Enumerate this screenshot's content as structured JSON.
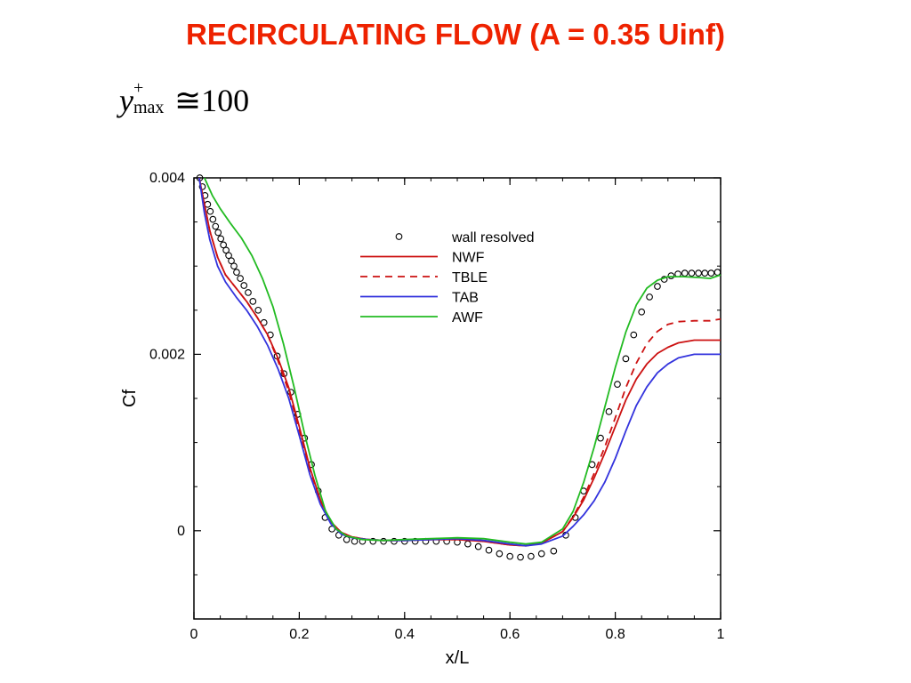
{
  "title": "RECIRCULATING FLOW (A = 0.35 Uinf)",
  "formula": {
    "variable": "y",
    "superscript": "+",
    "subscript": "max",
    "relation": "≅100"
  },
  "chart_data": {
    "type": "line",
    "xlabel": "x/L",
    "ylabel": "Cf",
    "xlim": [
      0,
      1
    ],
    "ylim": [
      -0.001,
      0.004
    ],
    "x_ticks": [
      0,
      0.2,
      0.4,
      0.6,
      0.8,
      1
    ],
    "x_tick_labels": [
      "0",
      "0.2",
      "0.4",
      "0.6",
      "0.8",
      "1"
    ],
    "y_ticks": [
      0,
      0.002,
      0.004
    ],
    "y_tick_labels": [
      "0",
      "0.002",
      "0.004"
    ],
    "legend_position": "top-center",
    "series": [
      {
        "name": "wall resolved",
        "style": "markers",
        "color": "#000000",
        "x": [
          0.011,
          0.016,
          0.021,
          0.026,
          0.031,
          0.036,
          0.041,
          0.046,
          0.051,
          0.056,
          0.061,
          0.066,
          0.071,
          0.076,
          0.081,
          0.088,
          0.095,
          0.103,
          0.112,
          0.122,
          0.133,
          0.145,
          0.158,
          0.171,
          0.184,
          0.197,
          0.21,
          0.223,
          0.236,
          0.249,
          0.262,
          0.275,
          0.29,
          0.305,
          0.32,
          0.34,
          0.36,
          0.38,
          0.4,
          0.42,
          0.44,
          0.46,
          0.48,
          0.5,
          0.52,
          0.54,
          0.56,
          0.58,
          0.6,
          0.62,
          0.64,
          0.66,
          0.683,
          0.706,
          0.724,
          0.74,
          0.756,
          0.772,
          0.788,
          0.804,
          0.82,
          0.835,
          0.85,
          0.865,
          0.88,
          0.893,
          0.906,
          0.919,
          0.932,
          0.945,
          0.958,
          0.97,
          0.982,
          0.994
        ],
        "y": [
          0.004,
          0.0039,
          0.0038,
          0.0037,
          0.00362,
          0.00353,
          0.00345,
          0.00338,
          0.00331,
          0.00324,
          0.00318,
          0.00312,
          0.00306,
          0.003,
          0.00293,
          0.00286,
          0.00278,
          0.0027,
          0.0026,
          0.0025,
          0.00236,
          0.00222,
          0.00198,
          0.00178,
          0.00157,
          0.00132,
          0.00105,
          0.00075,
          0.00045,
          0.00015,
          2e-05,
          -5e-05,
          -0.0001,
          -0.00012,
          -0.00012,
          -0.00012,
          -0.00012,
          -0.00012,
          -0.00012,
          -0.00012,
          -0.00012,
          -0.00012,
          -0.00012,
          -0.00013,
          -0.00015,
          -0.00018,
          -0.00022,
          -0.00026,
          -0.00029,
          -0.0003,
          -0.00029,
          -0.00026,
          -0.00023,
          -5e-05,
          0.00015,
          0.00045,
          0.00075,
          0.00105,
          0.00135,
          0.00166,
          0.00195,
          0.00222,
          0.00248,
          0.00265,
          0.00277,
          0.00285,
          0.00289,
          0.00291,
          0.00292,
          0.00292,
          0.00292,
          0.00292,
          0.00292,
          0.00293
        ]
      },
      {
        "name": "NWF",
        "style": "solid",
        "color": "#cc1111",
        "x": [
          0.01,
          0.02,
          0.03,
          0.045,
          0.06,
          0.08,
          0.1,
          0.12,
          0.14,
          0.16,
          0.18,
          0.2,
          0.22,
          0.24,
          0.26,
          0.28,
          0.3,
          0.33,
          0.36,
          0.4,
          0.45,
          0.5,
          0.55,
          0.6,
          0.63,
          0.66,
          0.7,
          0.72,
          0.74,
          0.76,
          0.78,
          0.8,
          0.82,
          0.84,
          0.86,
          0.88,
          0.9,
          0.92,
          0.95,
          0.98,
          1.0
        ],
        "y": [
          0.004,
          0.0037,
          0.0034,
          0.0031,
          0.0029,
          0.00275,
          0.0026,
          0.00242,
          0.00222,
          0.00195,
          0.00162,
          0.00118,
          0.00072,
          0.00035,
          0.0001,
          -2e-05,
          -7e-05,
          -0.0001,
          -0.00011,
          -0.00011,
          -0.0001,
          -0.0001,
          -0.00012,
          -0.00016,
          -0.00017,
          -0.00014,
          -1e-05,
          0.00015,
          0.00035,
          0.0006,
          0.00088,
          0.00118,
          0.00148,
          0.00172,
          0.00189,
          0.00201,
          0.00208,
          0.00213,
          0.00216,
          0.00216,
          0.00216
        ]
      },
      {
        "name": "TBLE",
        "style": "dashed",
        "color": "#cc1111",
        "x": [
          0.01,
          0.02,
          0.03,
          0.045,
          0.06,
          0.08,
          0.1,
          0.12,
          0.14,
          0.16,
          0.18,
          0.2,
          0.22,
          0.24,
          0.26,
          0.28,
          0.3,
          0.33,
          0.36,
          0.4,
          0.45,
          0.5,
          0.55,
          0.6,
          0.63,
          0.66,
          0.7,
          0.72,
          0.74,
          0.76,
          0.78,
          0.8,
          0.82,
          0.84,
          0.86,
          0.88,
          0.9,
          0.92,
          0.95,
          0.98,
          1.0
        ],
        "y": [
          0.004,
          0.0037,
          0.0034,
          0.0031,
          0.0029,
          0.00275,
          0.0026,
          0.00242,
          0.00222,
          0.00192,
          0.00158,
          0.00114,
          0.0007,
          0.00034,
          0.0001,
          -2e-05,
          -7e-05,
          -0.0001,
          -0.00011,
          -0.00011,
          -0.0001,
          -0.0001,
          -0.00012,
          -0.00016,
          -0.00017,
          -0.00014,
          -1e-05,
          0.00016,
          0.00038,
          0.00065,
          0.00095,
          0.00128,
          0.00162,
          0.0019,
          0.00212,
          0.00226,
          0.00234,
          0.00237,
          0.00238,
          0.00238,
          0.0024
        ]
      },
      {
        "name": "TAB",
        "style": "solid",
        "color": "#3333dd",
        "x": [
          0.01,
          0.02,
          0.03,
          0.045,
          0.06,
          0.08,
          0.1,
          0.12,
          0.14,
          0.16,
          0.18,
          0.2,
          0.22,
          0.24,
          0.26,
          0.28,
          0.3,
          0.33,
          0.36,
          0.4,
          0.45,
          0.5,
          0.55,
          0.6,
          0.63,
          0.66,
          0.7,
          0.72,
          0.74,
          0.76,
          0.78,
          0.8,
          0.82,
          0.84,
          0.86,
          0.88,
          0.9,
          0.92,
          0.95,
          0.98,
          1.0
        ],
        "y": [
          0.004,
          0.0036,
          0.0033,
          0.003,
          0.00282,
          0.00265,
          0.0025,
          0.00232,
          0.0021,
          0.00183,
          0.0015,
          0.00108,
          0.00064,
          0.0003,
          8e-05,
          -4e-05,
          -8e-05,
          -0.0001,
          -0.00011,
          -0.00011,
          -0.0001,
          -9e-05,
          -0.00011,
          -0.00015,
          -0.00017,
          -0.00015,
          -6e-05,
          5e-05,
          0.00018,
          0.00034,
          0.00055,
          0.00082,
          0.00113,
          0.00142,
          0.00163,
          0.00179,
          0.00189,
          0.00196,
          0.002,
          0.002,
          0.002
        ]
      },
      {
        "name": "AWF",
        "style": "solid",
        "color": "#22bb22",
        "x": [
          0.02,
          0.035,
          0.05,
          0.07,
          0.09,
          0.11,
          0.13,
          0.15,
          0.17,
          0.19,
          0.21,
          0.23,
          0.25,
          0.27,
          0.29,
          0.32,
          0.36,
          0.4,
          0.45,
          0.5,
          0.55,
          0.6,
          0.63,
          0.66,
          0.7,
          0.72,
          0.74,
          0.76,
          0.78,
          0.8,
          0.82,
          0.84,
          0.86,
          0.88,
          0.9,
          0.93,
          0.96,
          0.98,
          1.0
        ],
        "y": [
          0.004,
          0.0038,
          0.00365,
          0.00348,
          0.00332,
          0.00312,
          0.00286,
          0.00254,
          0.00212,
          0.00163,
          0.0011,
          0.00062,
          0.00022,
          2e-05,
          -6e-05,
          -0.0001,
          -0.00011,
          -0.0001,
          -9e-05,
          -8e-05,
          -9e-05,
          -0.00013,
          -0.00015,
          -0.00013,
          2e-05,
          0.00022,
          0.00055,
          0.00095,
          0.0014,
          0.00185,
          0.00225,
          0.00256,
          0.00275,
          0.00284,
          0.00288,
          0.00288,
          0.00287,
          0.00286,
          0.0029
        ]
      }
    ]
  }
}
